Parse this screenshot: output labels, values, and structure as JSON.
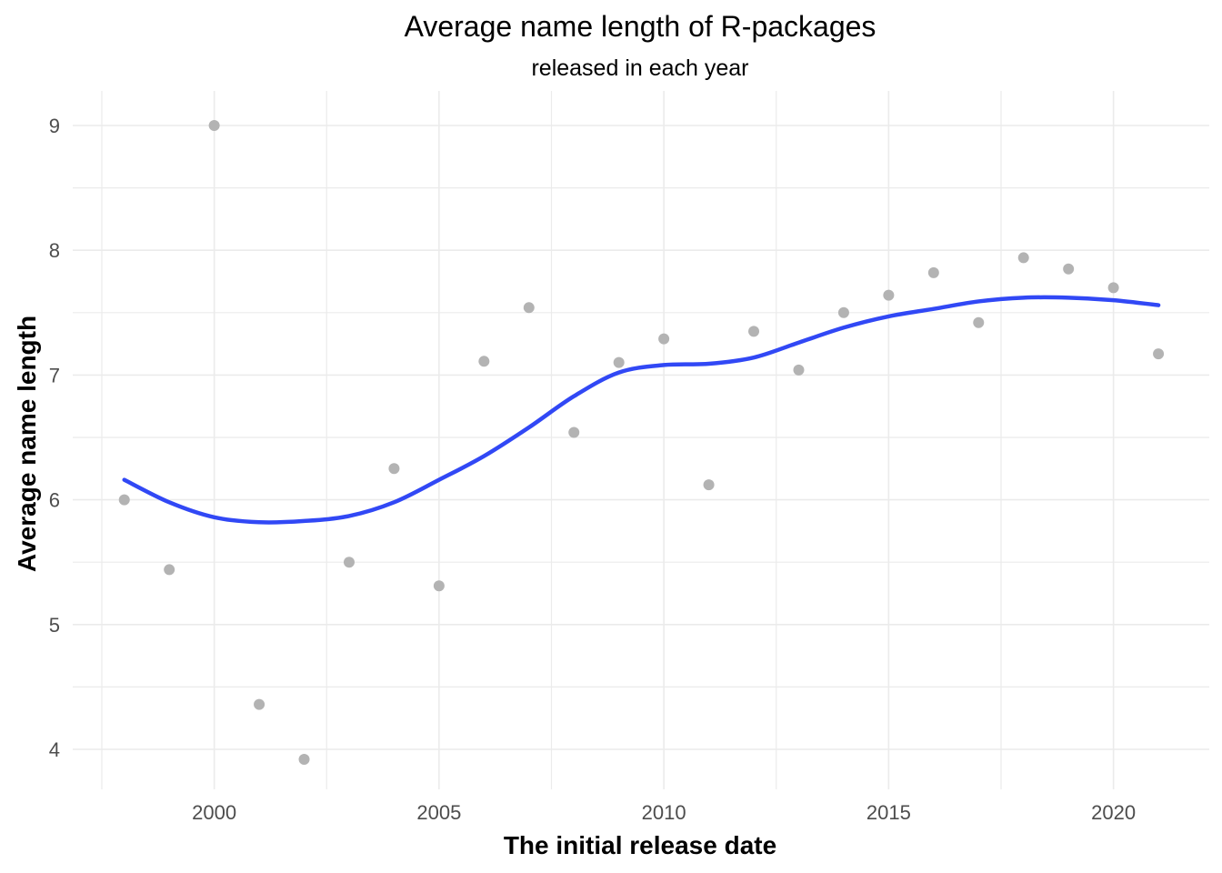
{
  "chart_data": {
    "type": "scatter",
    "title": "Average name length of R-packages",
    "subtitle": "released in each year",
    "xlabel": "The initial release date",
    "ylabel": "Average name length",
    "xlim": [
      1997.5,
      2022
    ],
    "ylim": [
      3.7,
      9.5
    ],
    "x_ticks": [
      2000,
      2005,
      2010,
      2015,
      2020
    ],
    "y_ticks": [
      4,
      5,
      6,
      7,
      8,
      9
    ],
    "grid": true,
    "colors": {
      "points": "#b3b3b3",
      "smooth": "#3148f5",
      "grid": "#ebebeb"
    },
    "series": [
      {
        "type": "scatter",
        "x": [
          1998,
          1999,
          2000,
          2001,
          2002,
          2003,
          2004,
          2005,
          2006,
          2007,
          2008,
          2009,
          2010,
          2011,
          2012,
          2013,
          2014,
          2015,
          2016,
          2017,
          2018,
          2019,
          2020,
          2021
        ],
        "y": [
          6.0,
          5.44,
          9.0,
          4.36,
          3.92,
          5.5,
          6.25,
          5.31,
          7.11,
          7.54,
          6.54,
          7.1,
          7.29,
          6.12,
          7.35,
          7.04,
          7.5,
          7.64,
          7.82,
          7.42,
          7.94,
          7.85,
          7.7,
          7.17
        ]
      },
      {
        "type": "line",
        "x": [
          1998,
          1999,
          2000,
          2001,
          2002,
          2003,
          2004,
          2005,
          2006,
          2007,
          2008,
          2009,
          2010,
          2011,
          2012,
          2013,
          2014,
          2015,
          2016,
          2017,
          2018,
          2019,
          2020,
          2021
        ],
        "y": [
          6.16,
          5.98,
          5.86,
          5.82,
          5.83,
          5.87,
          5.98,
          6.16,
          6.35,
          6.58,
          6.83,
          7.02,
          7.08,
          7.09,
          7.14,
          7.26,
          7.38,
          7.47,
          7.53,
          7.59,
          7.62,
          7.62,
          7.6,
          7.56
        ]
      }
    ]
  }
}
